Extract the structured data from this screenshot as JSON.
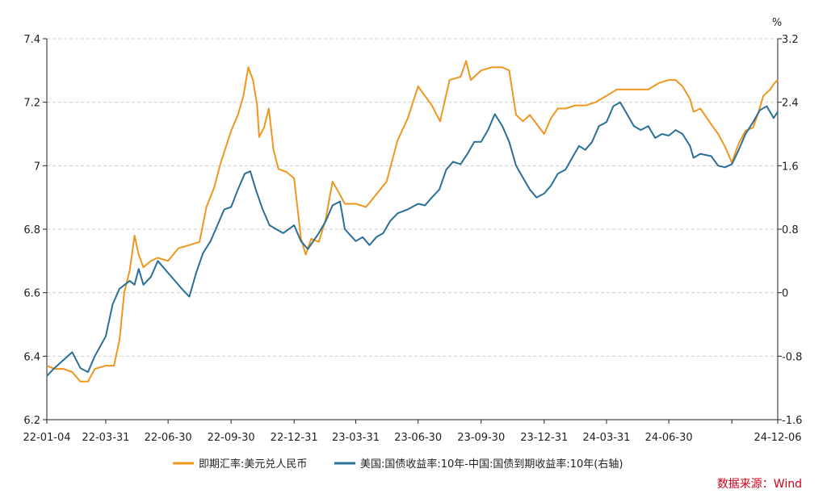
{
  "chart_data": {
    "type": "line",
    "title": "",
    "source": "数据来源：Wind",
    "y_left": {
      "ylim": [
        6.2,
        7.4
      ],
      "ticks": [
        "6.2",
        "6.4",
        "6.6",
        "6.8",
        "7",
        "7.2",
        "7.4"
      ],
      "tick_values": [
        6.2,
        6.4,
        6.6,
        6.8,
        7.0,
        7.2,
        7.4
      ]
    },
    "y_right": {
      "unit": "%",
      "ylim": [
        -1.6,
        3.2
      ],
      "ticks": [
        "-1.6",
        "-0.8",
        "0",
        "0.8",
        "1.6",
        "2.4",
        "3.2"
      ],
      "tick_values": [
        -1.6,
        -0.8,
        0,
        0.8,
        1.6,
        2.4,
        3.2
      ]
    },
    "x_ticks": [
      {
        "label": "22-01-04",
        "date": "2022-01-04"
      },
      {
        "label": "22-03-31",
        "date": "2022-03-31"
      },
      {
        "label": "22-06-30",
        "date": "2022-06-30"
      },
      {
        "label": "22-09-30",
        "date": "2022-09-30"
      },
      {
        "label": "22-12-31",
        "date": "2022-12-31"
      },
      {
        "label": "23-03-31",
        "date": "2023-03-31"
      },
      {
        "label": "23-06-30",
        "date": "2023-06-30"
      },
      {
        "label": "23-09-30",
        "date": "2023-09-30"
      },
      {
        "label": "23-12-31",
        "date": "2023-12-31"
      },
      {
        "label": "24-03-31",
        "date": "2024-03-31"
      },
      {
        "label": "24-06-30",
        "date": "2024-06-30"
      },
      {
        "label": "",
        "date": "2024-09-30"
      },
      {
        "label": "24-12-06",
        "date": "2024-12-06"
      }
    ],
    "grid": true,
    "legend_position": "bottom",
    "series": [
      {
        "name": "即期汇率:美元兑人民币",
        "axis": "left",
        "color": "#f0961e",
        "points": [
          [
            "2022-01-04",
            6.37
          ],
          [
            "2022-01-15",
            6.36
          ],
          [
            "2022-01-28",
            6.36
          ],
          [
            "2022-02-10",
            6.35
          ],
          [
            "2022-02-22",
            6.32
          ],
          [
            "2022-03-05",
            6.32
          ],
          [
            "2022-03-15",
            6.36
          ],
          [
            "2022-03-31",
            6.37
          ],
          [
            "2022-04-12",
            6.37
          ],
          [
            "2022-04-20",
            6.45
          ],
          [
            "2022-04-27",
            6.6
          ],
          [
            "2022-05-05",
            6.67
          ],
          [
            "2022-05-12",
            6.78
          ],
          [
            "2022-05-18",
            6.72
          ],
          [
            "2022-05-25",
            6.68
          ],
          [
            "2022-06-05",
            6.7
          ],
          [
            "2022-06-15",
            6.71
          ],
          [
            "2022-06-30",
            6.7
          ],
          [
            "2022-07-15",
            6.74
          ],
          [
            "2022-07-31",
            6.75
          ],
          [
            "2022-08-15",
            6.76
          ],
          [
            "2022-08-25",
            6.87
          ],
          [
            "2022-09-05",
            6.93
          ],
          [
            "2022-09-15",
            7.01
          ],
          [
            "2022-09-30",
            7.11
          ],
          [
            "2022-10-10",
            7.16
          ],
          [
            "2022-10-18",
            7.22
          ],
          [
            "2022-10-25",
            7.31
          ],
          [
            "2022-11-01",
            7.27
          ],
          [
            "2022-11-07",
            7.19
          ],
          [
            "2022-11-10",
            7.09
          ],
          [
            "2022-11-17",
            7.12
          ],
          [
            "2022-11-24",
            7.18
          ],
          [
            "2022-12-01",
            7.05
          ],
          [
            "2022-12-08",
            6.99
          ],
          [
            "2022-12-20",
            6.98
          ],
          [
            "2022-12-31",
            6.96
          ],
          [
            "2023-01-10",
            6.77
          ],
          [
            "2023-01-17",
            6.72
          ],
          [
            "2023-01-25",
            6.77
          ],
          [
            "2023-02-05",
            6.76
          ],
          [
            "2023-02-15",
            6.83
          ],
          [
            "2023-02-25",
            6.95
          ],
          [
            "2023-03-05",
            6.92
          ],
          [
            "2023-03-15",
            6.88
          ],
          [
            "2023-03-31",
            6.88
          ],
          [
            "2023-04-15",
            6.87
          ],
          [
            "2023-04-30",
            6.91
          ],
          [
            "2023-05-15",
            6.95
          ],
          [
            "2023-05-31",
            7.08
          ],
          [
            "2023-06-15",
            7.15
          ],
          [
            "2023-06-30",
            7.25
          ],
          [
            "2023-07-10",
            7.22
          ],
          [
            "2023-07-20",
            7.19
          ],
          [
            "2023-08-01",
            7.14
          ],
          [
            "2023-08-15",
            7.27
          ],
          [
            "2023-08-31",
            7.28
          ],
          [
            "2023-09-08",
            7.33
          ],
          [
            "2023-09-15",
            7.27
          ],
          [
            "2023-09-30",
            7.3
          ],
          [
            "2023-10-15",
            7.31
          ],
          [
            "2023-10-31",
            7.31
          ],
          [
            "2023-11-10",
            7.3
          ],
          [
            "2023-11-20",
            7.16
          ],
          [
            "2023-11-30",
            7.14
          ],
          [
            "2023-12-10",
            7.16
          ],
          [
            "2023-12-31",
            7.1
          ],
          [
            "2024-01-10",
            7.15
          ],
          [
            "2024-01-20",
            7.18
          ],
          [
            "2024-01-31",
            7.18
          ],
          [
            "2024-02-15",
            7.19
          ],
          [
            "2024-03-01",
            7.19
          ],
          [
            "2024-03-15",
            7.2
          ],
          [
            "2024-03-31",
            7.22
          ],
          [
            "2024-04-15",
            7.24
          ],
          [
            "2024-04-30",
            7.24
          ],
          [
            "2024-05-15",
            7.24
          ],
          [
            "2024-05-31",
            7.24
          ],
          [
            "2024-06-15",
            7.26
          ],
          [
            "2024-06-30",
            7.27
          ],
          [
            "2024-07-10",
            7.27
          ],
          [
            "2024-07-20",
            7.25
          ],
          [
            "2024-07-31",
            7.21
          ],
          [
            "2024-08-05",
            7.17
          ],
          [
            "2024-08-15",
            7.18
          ],
          [
            "2024-08-31",
            7.13
          ],
          [
            "2024-09-10",
            7.1
          ],
          [
            "2024-09-20",
            7.06
          ],
          [
            "2024-09-30",
            7.01
          ],
          [
            "2024-10-10",
            7.07
          ],
          [
            "2024-10-20",
            7.11
          ],
          [
            "2024-10-31",
            7.12
          ],
          [
            "2024-11-08",
            7.17
          ],
          [
            "2024-11-15",
            7.22
          ],
          [
            "2024-11-25",
            7.24
          ],
          [
            "2024-12-01",
            7.26
          ],
          [
            "2024-12-06",
            7.27
          ]
        ]
      },
      {
        "name": "美国:国债收益率:10年-中国:国债到期收益率:10年(右轴)",
        "axis": "right",
        "color": "#2a6f97",
        "points": [
          [
            "2022-01-04",
            -1.05
          ],
          [
            "2022-01-15",
            -0.95
          ],
          [
            "2022-01-28",
            -0.85
          ],
          [
            "2022-02-10",
            -0.75
          ],
          [
            "2022-02-22",
            -0.95
          ],
          [
            "2022-03-05",
            -1.0
          ],
          [
            "2022-03-15",
            -0.8
          ],
          [
            "2022-03-31",
            -0.55
          ],
          [
            "2022-04-10",
            -0.15
          ],
          [
            "2022-04-20",
            0.05
          ],
          [
            "2022-05-05",
            0.15
          ],
          [
            "2022-05-12",
            0.1
          ],
          [
            "2022-05-18",
            0.3
          ],
          [
            "2022-05-25",
            0.1
          ],
          [
            "2022-06-05",
            0.2
          ],
          [
            "2022-06-15",
            0.4
          ],
          [
            "2022-06-25",
            0.3
          ],
          [
            "2022-06-30",
            0.25
          ],
          [
            "2022-07-10",
            0.15
          ],
          [
            "2022-07-20",
            0.05
          ],
          [
            "2022-07-31",
            -0.05
          ],
          [
            "2022-08-10",
            0.25
          ],
          [
            "2022-08-20",
            0.5
          ],
          [
            "2022-08-31",
            0.65
          ],
          [
            "2022-09-10",
            0.85
          ],
          [
            "2022-09-20",
            1.05
          ],
          [
            "2022-09-30",
            1.08
          ],
          [
            "2022-10-10",
            1.3
          ],
          [
            "2022-10-20",
            1.5
          ],
          [
            "2022-10-28",
            1.53
          ],
          [
            "2022-11-05",
            1.3
          ],
          [
            "2022-11-15",
            1.05
          ],
          [
            "2022-11-25",
            0.85
          ],
          [
            "2022-12-05",
            0.8
          ],
          [
            "2022-12-15",
            0.75
          ],
          [
            "2022-12-31",
            0.85
          ],
          [
            "2023-01-10",
            0.65
          ],
          [
            "2023-01-20",
            0.55
          ],
          [
            "2023-02-05",
            0.75
          ],
          [
            "2023-02-15",
            0.9
          ],
          [
            "2023-02-25",
            1.1
          ],
          [
            "2023-03-08",
            1.15
          ],
          [
            "2023-03-15",
            0.8
          ],
          [
            "2023-03-31",
            0.65
          ],
          [
            "2023-04-10",
            0.7
          ],
          [
            "2023-04-20",
            0.6
          ],
          [
            "2023-04-30",
            0.7
          ],
          [
            "2023-05-10",
            0.75
          ],
          [
            "2023-05-20",
            0.9
          ],
          [
            "2023-05-31",
            1.0
          ],
          [
            "2023-06-15",
            1.05
          ],
          [
            "2023-06-30",
            1.12
          ],
          [
            "2023-07-10",
            1.1
          ],
          [
            "2023-07-20",
            1.2
          ],
          [
            "2023-07-31",
            1.3
          ],
          [
            "2023-08-10",
            1.55
          ],
          [
            "2023-08-20",
            1.65
          ],
          [
            "2023-08-31",
            1.62
          ],
          [
            "2023-09-10",
            1.75
          ],
          [
            "2023-09-20",
            1.9
          ],
          [
            "2023-09-30",
            1.9
          ],
          [
            "2023-10-10",
            2.05
          ],
          [
            "2023-10-20",
            2.25
          ],
          [
            "2023-10-31",
            2.1
          ],
          [
            "2023-11-10",
            1.9
          ],
          [
            "2023-11-20",
            1.6
          ],
          [
            "2023-11-30",
            1.45
          ],
          [
            "2023-12-10",
            1.3
          ],
          [
            "2023-12-20",
            1.2
          ],
          [
            "2023-12-31",
            1.25
          ],
          [
            "2024-01-10",
            1.35
          ],
          [
            "2024-01-20",
            1.5
          ],
          [
            "2024-01-31",
            1.55
          ],
          [
            "2024-02-10",
            1.7
          ],
          [
            "2024-02-20",
            1.85
          ],
          [
            "2024-02-29",
            1.8
          ],
          [
            "2024-03-10",
            1.9
          ],
          [
            "2024-03-20",
            2.1
          ],
          [
            "2024-03-31",
            2.15
          ],
          [
            "2024-04-10",
            2.35
          ],
          [
            "2024-04-20",
            2.4
          ],
          [
            "2024-04-30",
            2.25
          ],
          [
            "2024-05-10",
            2.1
          ],
          [
            "2024-05-20",
            2.05
          ],
          [
            "2024-05-31",
            2.1
          ],
          [
            "2024-06-10",
            1.95
          ],
          [
            "2024-06-20",
            2.0
          ],
          [
            "2024-06-30",
            1.98
          ],
          [
            "2024-07-10",
            2.05
          ],
          [
            "2024-07-20",
            2.0
          ],
          [
            "2024-07-31",
            1.85
          ],
          [
            "2024-08-05",
            1.7
          ],
          [
            "2024-08-15",
            1.75
          ],
          [
            "2024-08-31",
            1.72
          ],
          [
            "2024-09-10",
            1.6
          ],
          [
            "2024-09-20",
            1.58
          ],
          [
            "2024-09-30",
            1.62
          ],
          [
            "2024-10-10",
            1.8
          ],
          [
            "2024-10-20",
            2.0
          ],
          [
            "2024-10-31",
            2.15
          ],
          [
            "2024-11-10",
            2.3
          ],
          [
            "2024-11-20",
            2.35
          ],
          [
            "2024-11-30",
            2.2
          ],
          [
            "2024-12-06",
            2.28
          ]
        ]
      }
    ]
  }
}
